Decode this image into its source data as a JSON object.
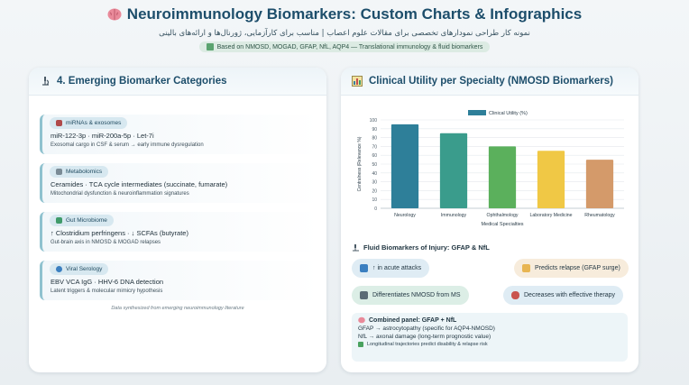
{
  "header": {
    "title": "Neuroimmunology Biomarkers: Custom Charts & Infographics",
    "subtitle_fa": "نمونه کار طراحی نمودارهای تخصصی برای مقالات علوم اعصاب | مناسب برای کارآزمایی، ژورنال‌ها و ارائه‌های بالینی",
    "pill": "Based on NMOSD, MOGAD, GFAP, NfL, AQP4 — Translational immunology & fluid biomarkers"
  },
  "left": {
    "title": "4. Emerging Biomarker Categories",
    "categories": [
      {
        "tag": "miRNAs & exosomes",
        "main": "miR-122-3p · miR-200a-5p · Let-7i",
        "sub": "Exosomal cargo in CSF & serum → early immune dysregulation"
      },
      {
        "tag": "Metabolomics",
        "main": "Ceramides · TCA cycle intermediates (succinate, fumarate)",
        "sub": "Mitochondrial dysfunction & neuroinflammation signatures"
      },
      {
        "tag": "Gut Microbiome",
        "main": "↑ Clostridium perfringens · ↓ SCFAs (butyrate)",
        "sub": "Gut-brain axis in NMOSD & MOGAD relapses"
      },
      {
        "tag": "Viral Serology",
        "main": "EBV VCA IgG · HHV-6 DNA detection",
        "sub": "Latent triggers & molecular mimicry hypothesis"
      }
    ],
    "footnote": "Data synthesized from emerging neuroimmunology literature"
  },
  "right": {
    "title": "Clinical Utility per Specialty (NMOSD Biomarkers)",
    "fluid_title": "Fluid Biomarkers of Injury: GFAP & NfL",
    "chips": [
      {
        "label": "↑ in acute attacks",
        "icon": "up-arrow-icon"
      },
      {
        "label": "Predicts relapse (GFAP surge)",
        "icon": "chart-icon"
      },
      {
        "label": "Differentiates NMOSD from MS",
        "icon": "flask-icon"
      },
      {
        "label": "Decreases with effective therapy",
        "icon": "pill-icon"
      }
    ],
    "combo": {
      "title": "Combined panel: GFAP + NfL",
      "line1": "GFAP → astrocytopathy (specific for AQP4-NMOSD)",
      "line2": "NfL → axonal damage (long-term prognostic value)",
      "foot": "Longitudinal trajectories predict disability & relapse risk"
    }
  },
  "chart_data": {
    "type": "bar",
    "categories": [
      "Neurology",
      "Immunology",
      "Ophthalmology",
      "Laboratory Medicine",
      "Rheumatology"
    ],
    "series": [
      {
        "name": "Clinical Utility (%)",
        "values": [
          95,
          85,
          70,
          65,
          55
        ]
      }
    ],
    "colors": [
      "#2e7f99",
      "#3a9c8c",
      "#5bb05c",
      "#f0c845",
      "#d49a6a"
    ],
    "xlabel": "Medical Specialties",
    "ylabel": "Centralness (Relevance %)",
    "ylim": [
      0,
      100
    ],
    "yticks": [
      0,
      10,
      20,
      30,
      40,
      50,
      60,
      70,
      80,
      90,
      100
    ],
    "grid": true,
    "legend": "top-center"
  }
}
